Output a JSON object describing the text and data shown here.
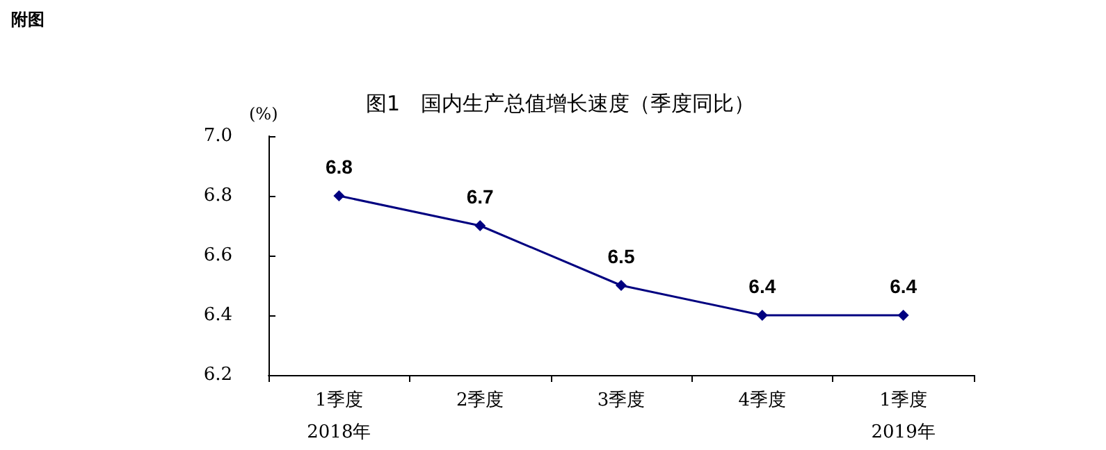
{
  "chart_data": {
    "type": "line",
    "title": "图1　国内生产总值增长速度（季度同比）",
    "ylabel": "(%)",
    "categories": [
      "1季度",
      "2季度",
      "3季度",
      "4季度",
      "1季度"
    ],
    "series": [
      {
        "color": "#000080",
        "values": [
          6.8,
          6.7,
          6.5,
          6.4,
          6.4
        ]
      }
    ],
    "ylim": [
      6.2,
      7.0
    ],
    "yticks": [
      6.2,
      6.4,
      6.6,
      6.8,
      {
        "value": 7.0,
        "label": "7.0"
      }
    ],
    "data_labels": true,
    "marker": "diamond",
    "line_style": "solid",
    "annotations": [
      "附图",
      "2018年",
      "2019年"
    ]
  }
}
